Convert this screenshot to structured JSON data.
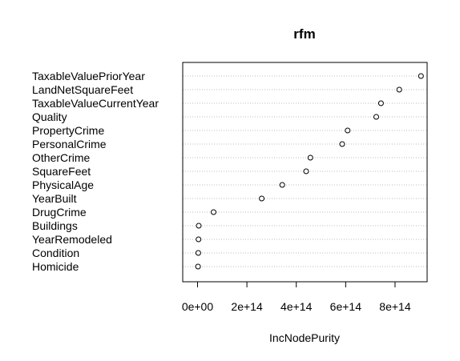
{
  "chart_data": {
    "type": "scatter",
    "title": "rfm",
    "xlabel": "IncNodePurity",
    "ylabel": "",
    "xlim": [
      -60000000000000.0,
      930000000000000.0
    ],
    "grid": "dotted horizontal lines per variable",
    "legend": "none",
    "x_ticks": [
      {
        "value": 0,
        "label": "0e+00"
      },
      {
        "value": 200000000000000.0,
        "label": "2e+14"
      },
      {
        "value": 400000000000000.0,
        "label": "4e+14"
      },
      {
        "value": 600000000000000.0,
        "label": "6e+14"
      },
      {
        "value": 800000000000000.0,
        "label": "8e+14"
      }
    ],
    "categories": [
      "TaxableValuePriorYear",
      "LandNetSquareFeet",
      "TaxableValueCurrentYear",
      "Quality",
      "PropertyCrime",
      "PersonalCrime",
      "OtherCrime",
      "SquareFeet",
      "PhysicalAge",
      "YearBuilt",
      "DrugCrime",
      "Buildings",
      "YearRemodeled",
      "Condition",
      "Homicide"
    ],
    "values": [
      905000000000000.0,
      817000000000000.0,
      743000000000000.0,
      724000000000000.0,
      608000000000000.0,
      586000000000000.0,
      457000000000000.0,
      440000000000000.0,
      343000000000000.0,
      260000000000000.0,
      65000000000000.0,
      5000000000000.0,
      4000000000000.0,
      3000000000000.0,
      2000000000000.0
    ]
  }
}
